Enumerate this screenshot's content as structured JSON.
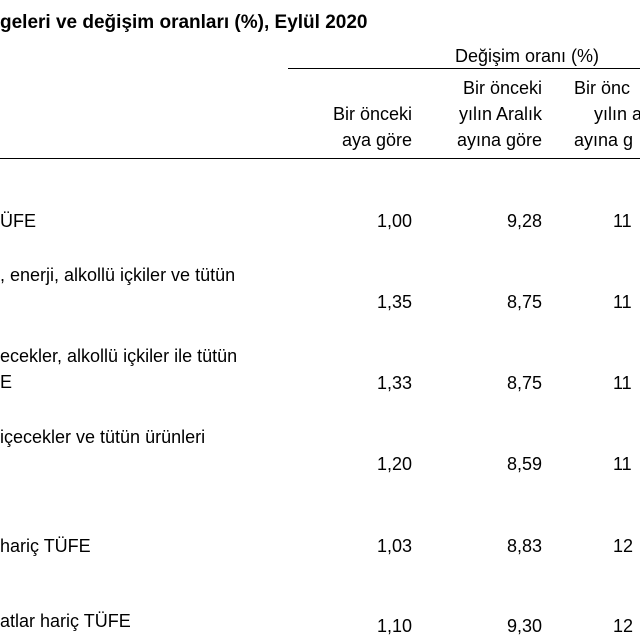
{
  "title": "geleri ve değişim oranları (%), Eylül 2020",
  "group_header": "Değişim oranı (%)",
  "columns": [
    {
      "lines": [
        "Bir önceki",
        "aya göre"
      ]
    },
    {
      "lines": [
        "Bir önceki",
        "yılın Aralık",
        "ayına göre"
      ]
    },
    {
      "lines": [
        "Bir önc",
        "yılın a",
        "ayına g"
      ]
    }
  ],
  "rows": [
    {
      "label": [
        "ÜFE"
      ],
      "values": [
        "1,00",
        "9,28",
        "11"
      ]
    },
    {
      "label": [
        ", enerji, alkollü içkiler ve tütün",
        ""
      ],
      "values": [
        "1,35",
        "8,75",
        "11"
      ]
    },
    {
      "label": [
        "ecekler, alkollü içkiler ile tütün",
        "E"
      ],
      "values": [
        "1,33",
        "8,75",
        "11"
      ]
    },
    {
      "label": [
        "içecekler ve tütün ürünleri",
        ""
      ],
      "values": [
        "1,20",
        "8,59",
        "11"
      ]
    },
    {
      "label": [
        "hariç TÜFE"
      ],
      "values": [
        "1,03",
        "8,83",
        "12"
      ]
    },
    {
      "label": [
        "atlar hariç TÜFE"
      ],
      "values": [
        "1,10",
        "9,30",
        "12"
      ]
    }
  ]
}
